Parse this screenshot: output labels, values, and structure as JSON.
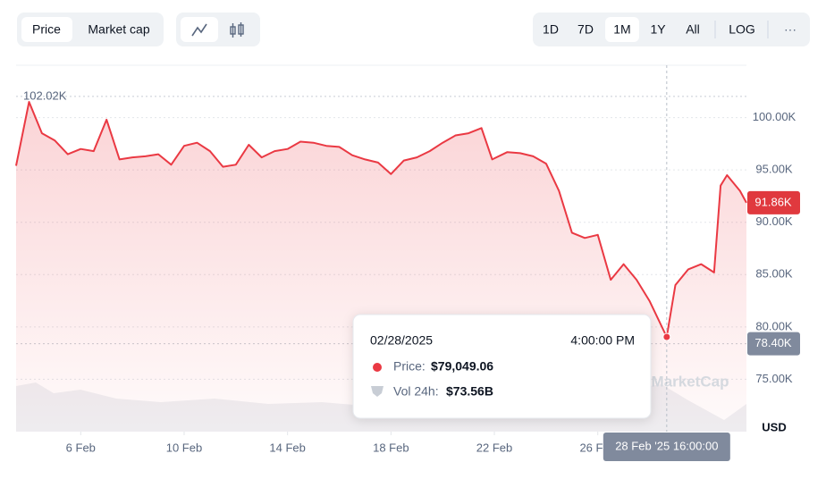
{
  "toolbar": {
    "tabs": [
      "Price",
      "Market cap"
    ],
    "ranges": [
      "1D",
      "7D",
      "1M",
      "1Y",
      "All"
    ],
    "log": "LOG",
    "more": "···"
  },
  "chart_data": {
    "type": "line",
    "color": "#ea3943",
    "x": [
      "2025-02-03T12:00",
      "2025-02-04T00:00",
      "2025-02-04T12:00",
      "2025-02-05T00:00",
      "2025-02-05T12:00",
      "2025-02-06T00:00",
      "2025-02-06T12:00",
      "2025-02-07T00:00",
      "2025-02-07T12:00",
      "2025-02-08T00:00",
      "2025-02-08T12:00",
      "2025-02-09T00:00",
      "2025-02-09T12:00",
      "2025-02-10T00:00",
      "2025-02-10T12:00",
      "2025-02-11T00:00",
      "2025-02-11T12:00",
      "2025-02-12T00:00",
      "2025-02-12T12:00",
      "2025-02-13T00:00",
      "2025-02-13T12:00",
      "2025-02-14T00:00",
      "2025-02-14T12:00",
      "2025-02-15T00:00",
      "2025-02-15T12:00",
      "2025-02-16T00:00",
      "2025-02-16T12:00",
      "2025-02-17T00:00",
      "2025-02-17T12:00",
      "2025-02-18T00:00",
      "2025-02-18T12:00",
      "2025-02-19T00:00",
      "2025-02-19T12:00",
      "2025-02-20T00:00",
      "2025-02-20T12:00",
      "2025-02-21T00:00",
      "2025-02-21T12:00",
      "2025-02-21T22:00",
      "2025-02-22T12:00",
      "2025-02-23T00:00",
      "2025-02-23T12:00",
      "2025-02-24T00:00",
      "2025-02-24T12:00",
      "2025-02-25T00:00",
      "2025-02-25T12:00",
      "2025-02-26T00:00",
      "2025-02-26T12:00",
      "2025-02-27T00:00",
      "2025-02-27T12:00",
      "2025-02-28T00:00",
      "2025-02-28T16:00",
      "2025-03-01T00:00",
      "2025-03-01T12:00",
      "2025-03-02T00:00",
      "2025-03-02T12:00",
      "2025-03-02T18:00",
      "2025-03-03T00:00",
      "2025-03-03T12:00",
      "2025-03-03T18:00"
    ],
    "values": [
      95400,
      101500,
      98500,
      97800,
      96500,
      97000,
      96800,
      99800,
      96000,
      96200,
      96300,
      96500,
      95500,
      97300,
      97600,
      96800,
      95300,
      95500,
      97400,
      96200,
      96800,
      97000,
      97700,
      97600,
      97300,
      97200,
      96400,
      96000,
      95700,
      94600,
      95900,
      96200,
      96800,
      97600,
      98300,
      98500,
      99000,
      96000,
      96700,
      96600,
      96300,
      95600,
      93000,
      89000,
      88500,
      88800,
      84500,
      86000,
      84500,
      82500,
      79049,
      84000,
      85500,
      86000,
      85200,
      93500,
      94500,
      93000,
      91860
    ],
    "xlim": [
      "2025-02-03T12:00",
      "2025-03-03T18:00"
    ],
    "ylim": [
      70000,
      105000
    ],
    "xticks": [
      {
        "value": "2025-02-06T00:00",
        "label": "6 Feb"
      },
      {
        "value": "2025-02-10T00:00",
        "label": "10 Feb"
      },
      {
        "value": "2025-02-14T00:00",
        "label": "14 Feb"
      },
      {
        "value": "2025-02-18T00:00",
        "label": "18 Feb"
      },
      {
        "value": "2025-02-22T00:00",
        "label": "22 Feb"
      },
      {
        "value": "2025-02-26T00:00",
        "label": "26 Feb"
      }
    ],
    "yticks": [
      {
        "value": 75000,
        "label": "75.00K"
      },
      {
        "value": 80000,
        "label": "80.00K"
      },
      {
        "value": 85000,
        "label": "85.00K"
      },
      {
        "value": 90000,
        "label": "90.00K"
      },
      {
        "value": 95000,
        "label": "95.00K"
      },
      {
        "value": 100000,
        "label": "100.00K"
      }
    ],
    "grid": true,
    "high": {
      "value": 102020,
      "label": "102.02K"
    },
    "current": {
      "value": 91860,
      "label": "91.86K"
    },
    "low": {
      "value": 78400,
      "label": "78.40K"
    },
    "unit": "USD",
    "watermark": "MarketCap",
    "crosshair": {
      "x": "2025-02-28T16:00",
      "label": "28 Feb '25 16:00:00"
    },
    "tooltip": {
      "date": "02/28/2025",
      "time": "4:00:00 PM",
      "price_label": "Price:",
      "price": "$79,049.06",
      "vol_label": "Vol 24h:",
      "vol": "$73.56B"
    }
  }
}
